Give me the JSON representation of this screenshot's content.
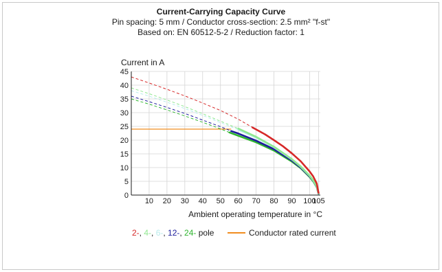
{
  "chart_data": {
    "type": "line",
    "title": "Current-Carrying Capacity Curve",
    "subtitle_lines": [
      "Pin spacing: 5 mm / Conductor cross-section: 2.5 mm² \"f-st\"",
      "Based on: EN 60512-5-2 / Reduction factor: 1"
    ],
    "ylabel": "Current in A",
    "xlabel": "Ambient operating temperature in °C",
    "xlim": [
      0,
      106
    ],
    "ylim": [
      0,
      45
    ],
    "x_ticks": [
      10,
      20,
      30,
      40,
      50,
      60,
      70,
      80,
      90,
      100,
      105
    ],
    "x_tick_labels": [
      "10",
      "20",
      "30",
      "40",
      "50",
      "60",
      "70",
      "80",
      "90",
      "100",
      "105"
    ],
    "y_ticks": [
      0,
      5,
      10,
      15,
      20,
      25,
      30,
      35,
      40,
      45
    ],
    "y_tick_labels": [
      "0",
      "5",
      "10",
      "15",
      "20",
      "25",
      "30",
      "35",
      "40",
      "45"
    ],
    "grid": true,
    "series": [
      {
        "name": "2-",
        "color": "#d62828",
        "extrapolated": {
          "x": [
            0,
            10,
            20,
            30,
            40,
            50,
            60,
            68
          ],
          "y": [
            43,
            40.8,
            38.5,
            36.1,
            33.5,
            30.8,
            27.6,
            24.6
          ]
        },
        "valid": {
          "x": [
            68,
            75,
            80,
            85,
            90,
            95,
            100,
            102,
            104,
            105
          ],
          "y": [
            24.6,
            22.1,
            20.0,
            17.8,
            15.2,
            12.3,
            8.6,
            6.8,
            4.2,
            0.8
          ]
        }
      },
      {
        "name": "4-",
        "color": "#90e890",
        "extrapolated": {
          "x": [
            0,
            10,
            20,
            30,
            40,
            50,
            60
          ],
          "y": [
            39,
            36.9,
            34.6,
            32.2,
            29.6,
            26.9,
            24.2
          ]
        },
        "valid": {
          "x": [
            60,
            70,
            80,
            90,
            95,
            100,
            102,
            104,
            105
          ],
          "y": [
            24.2,
            21.2,
            17.6,
            13.1,
            10.4,
            7.1,
            5.4,
            3.2,
            0.6
          ]
        }
      },
      {
        "name": "6-",
        "color": "#b8ecec",
        "extrapolated": {
          "x": [
            0,
            10,
            20,
            30,
            40,
            50,
            60
          ],
          "y": [
            38,
            36.0,
            33.8,
            31.5,
            29.0,
            26.4,
            23.8
          ]
        },
        "valid": {
          "x": [
            60,
            70,
            80,
            90,
            95,
            100,
            102,
            104,
            105
          ],
          "y": [
            23.8,
            20.9,
            17.4,
            13.0,
            10.3,
            7.0,
            5.3,
            3.1,
            0.6
          ]
        }
      },
      {
        "name": "12-",
        "color": "#1c1c9c",
        "extrapolated": {
          "x": [
            0,
            10,
            20,
            30,
            40,
            50,
            56
          ],
          "y": [
            36,
            34.0,
            31.9,
            29.7,
            27.3,
            24.9,
            23.3
          ]
        },
        "valid": {
          "x": [
            56,
            60,
            70,
            80,
            90,
            95,
            100,
            102,
            104,
            105
          ],
          "y": [
            23.3,
            22.4,
            19.8,
            16.7,
            12.6,
            10.0,
            6.8,
            5.2,
            3.0,
            0.5
          ]
        }
      },
      {
        "name": "24-",
        "color": "#2fb52f",
        "extrapolated": {
          "x": [
            0,
            10,
            20,
            30,
            40,
            50,
            55
          ],
          "y": [
            35,
            33.1,
            31.0,
            28.8,
            26.5,
            24.1,
            22.8
          ]
        },
        "valid": {
          "x": [
            55,
            60,
            70,
            80,
            90,
            95,
            100,
            102,
            104,
            105
          ],
          "y": [
            22.8,
            21.6,
            19.2,
            16.2,
            12.2,
            9.8,
            6.6,
            5.0,
            2.9,
            0.5
          ]
        }
      }
    ],
    "rated_current": {
      "name": "Conductor rated current",
      "color": "#f08c1e",
      "y": 24,
      "x": [
        0,
        56
      ]
    },
    "legend": {
      "placement": "bottom",
      "pole_items": [
        {
          "text": "2-",
          "color": "#d62828"
        },
        {
          "text": "4-",
          "color": "#90e890"
        },
        {
          "text": "6-",
          "color": "#b8ecec"
        },
        {
          "text": "12-",
          "color": "#1c1c9c"
        },
        {
          "text": "24-",
          "color": "#2fb52f"
        }
      ],
      "separator": ", ",
      "pole_suffix": "pole",
      "rated_label": "Conductor rated current",
      "rated_color": "#f08c1e"
    }
  }
}
